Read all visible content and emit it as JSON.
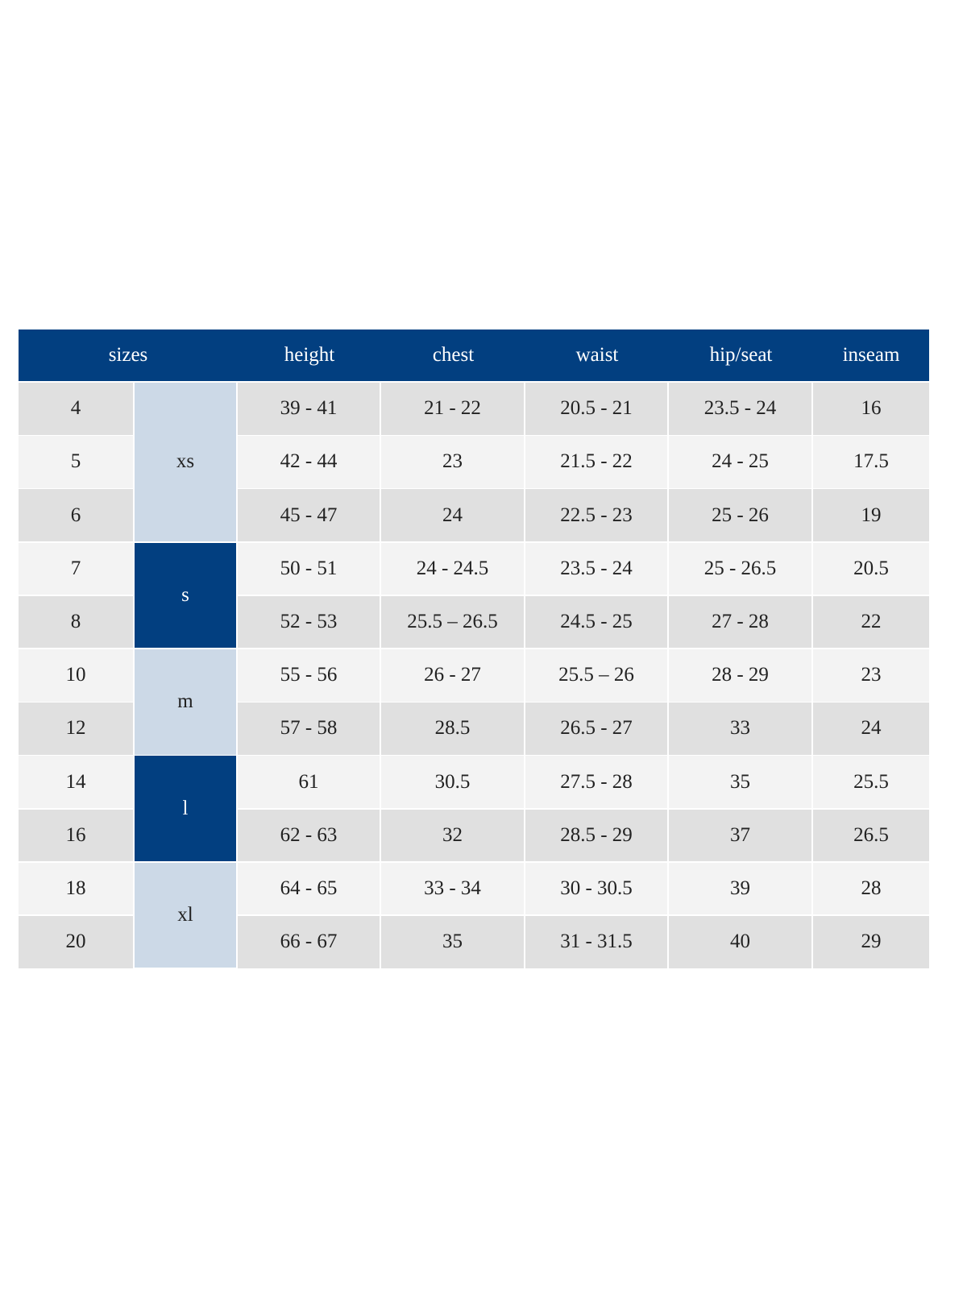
{
  "table": {
    "headers": [
      "sizes",
      "height",
      "chest",
      "waist",
      "hip/seat",
      "inseam"
    ],
    "groups": [
      {
        "label": "xs",
        "rows": [
          [
            "4",
            "39 - 41",
            "21 - 22",
            "20.5 - 21",
            "23.5 - 24",
            "16"
          ],
          [
            "5",
            "42 - 44",
            "23",
            "21.5 - 22",
            "24 - 25",
            "17.5"
          ],
          [
            "6",
            "45 - 47",
            "24",
            "22.5 - 23",
            "25 - 26",
            "19"
          ]
        ]
      },
      {
        "label": "s",
        "rows": [
          [
            "7",
            "50 - 51",
            "24 - 24.5",
            "23.5 - 24",
            "25 - 26.5",
            "20.5"
          ],
          [
            "8",
            "52 - 53",
            "25.5 – 26.5",
            "24.5 - 25",
            "27 - 28",
            "22"
          ]
        ]
      },
      {
        "label": "m",
        "rows": [
          [
            "10",
            "55 - 56",
            "26 - 27",
            "25.5 – 26",
            "28 - 29",
            "23"
          ],
          [
            "12",
            "57 - 58",
            "28.5",
            "26.5 - 27",
            "33",
            "24"
          ]
        ]
      },
      {
        "label": "l",
        "rows": [
          [
            "14",
            "61",
            "30.5",
            "27.5 - 28",
            "35",
            "25.5"
          ],
          [
            "16",
            "62 - 63",
            "32",
            "28.5 - 29",
            "37",
            "26.5"
          ]
        ]
      },
      {
        "label": "xl",
        "rows": [
          [
            "18",
            "64 - 65",
            "33 - 34",
            "30 - 30.5",
            "39",
            "28"
          ],
          [
            "20",
            "66 - 67",
            "35",
            "31 - 31.5",
            "40",
            "29"
          ]
        ]
      }
    ]
  }
}
